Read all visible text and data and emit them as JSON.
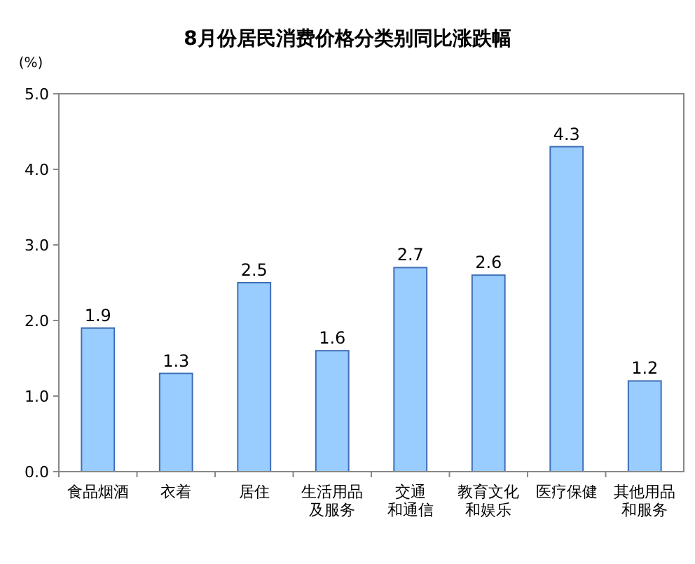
{
  "chart_data": {
    "type": "bar",
    "title": "8月份居民消费价格分类别同比涨跌幅",
    "ylabel": "(%)",
    "categories": [
      "食品烟酒",
      "衣着",
      "居住",
      "生活用品及服务",
      "交通和通信",
      "教育文化和娱乐",
      "医疗保健",
      "其他用品和服务"
    ],
    "values": [
      1.9,
      1.3,
      2.5,
      1.6,
      2.7,
      2.6,
      4.3,
      1.2
    ],
    "color": "#99ccff",
    "ylim": [
      0,
      5
    ],
    "yticks": [
      {
        "value": 0,
        "label": "0.0"
      },
      {
        "value": 1,
        "label": "1.0"
      },
      {
        "value": 2,
        "label": "2.0"
      },
      {
        "value": 3,
        "label": "3.0"
      },
      {
        "value": 4,
        "label": "4.0"
      },
      {
        "value": 5,
        "label": "5.0"
      }
    ],
    "data_labels": true,
    "grid": false
  }
}
